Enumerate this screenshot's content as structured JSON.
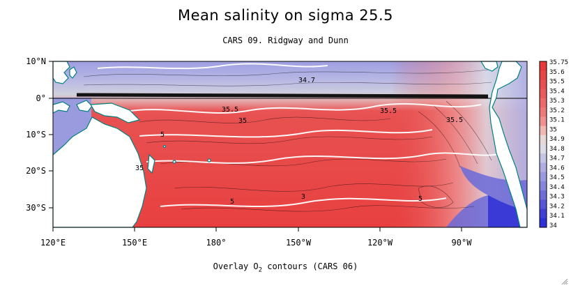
{
  "title": "Mean salinity on sigma 25.5",
  "subtitle": "CARS 09. Ridgway and Dunn",
  "caption": {
    "prefix": "Overlay O",
    "subscript": "2",
    "suffix": " contours (CARS 06)"
  },
  "map": {
    "lon_ticks": [
      "120°E",
      "150°E",
      "180°",
      "150°W",
      "120°W",
      "90°W"
    ],
    "lat_ticks": [
      "10°N",
      "0°",
      "10°S",
      "20°S",
      "30°S"
    ],
    "contour_labels": [
      "34.7",
      "35.5",
      "35.5",
      "35.5",
      "35",
      "5",
      "5",
      "3",
      "35",
      "5"
    ]
  },
  "colorbar": {
    "labels": [
      "35.75",
      "35.6",
      "35.5",
      "35.4",
      "35.3",
      "35.2",
      "35.1",
      "35",
      "34.9",
      "34.8",
      "34.7",
      "34.6",
      "34.5",
      "34.4",
      "34.3",
      "34.2",
      "34.1",
      "34"
    ],
    "colors": [
      "#e83838",
      "#e84444",
      "#e95050",
      "#ea5c5c",
      "#ec6a6a",
      "#ee7a7a",
      "#f09090",
      "#f0b8b0",
      "#e8d8d8",
      "#dcdce6",
      "#c4c4e4",
      "#aeaee2",
      "#9a9ade",
      "#8686da",
      "#6e6ed8",
      "#5656d6",
      "#4040d6",
      "#3030d8"
    ]
  },
  "colors": {
    "ocean_red": "#e84646",
    "ocean_blue": "#8a8ae0",
    "land": "#ffffff",
    "coast": "#008080"
  }
}
